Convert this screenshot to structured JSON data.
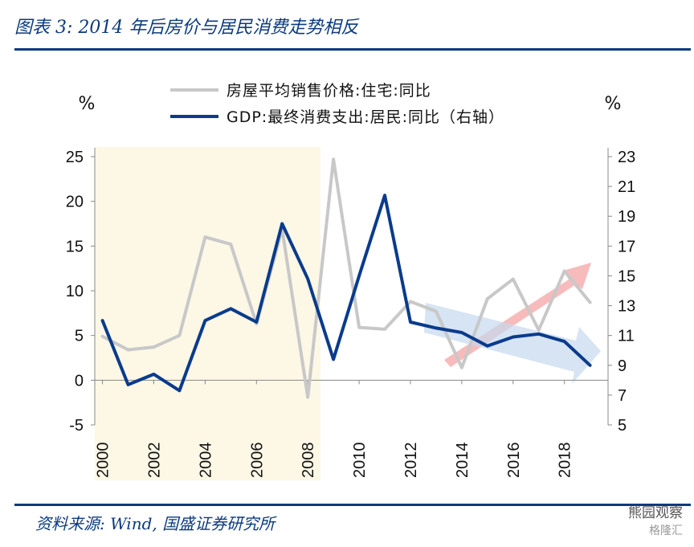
{
  "header": {
    "title": "图表 3:  2014 年后房价与居民消费走势相反"
  },
  "footer": {
    "source": "资料来源:  Wind,  国盛证券研究所",
    "watermark_main": "熊园观察",
    "watermark_sub": "格隆汇"
  },
  "colors": {
    "title_blue": "#0b3a7e",
    "house_series": "#c8c8c8",
    "gdp_series": "#0a3b8c",
    "shade": "#fdf7e6",
    "arrow_red": "#f4a4a4",
    "arrow_blue": "#c6d8ee"
  },
  "chart_data": {
    "type": "line",
    "left_unit": "%",
    "right_unit": "%",
    "y_left_ticks": [
      "25",
      "20",
      "15",
      "10",
      "5",
      "0",
      "-5"
    ],
    "y_right_ticks": [
      "23",
      "21",
      "19",
      "17",
      "15",
      "13",
      "11",
      "9",
      "7",
      "5"
    ],
    "x_ticks": [
      "2000",
      "2002",
      "2004",
      "2006",
      "2008",
      "2010",
      "2012",
      "2014",
      "2016",
      "2018"
    ],
    "ylim_left": [
      -5,
      25
    ],
    "ylim_right": [
      5,
      23
    ],
    "xlim": [
      1999.7,
      2019.7
    ],
    "shaded_range": [
      1999.7,
      2008.5
    ],
    "series": [
      {
        "name": "房屋平均销售价格:住宅:同比",
        "axis": "left",
        "x": [
          2000,
          2001,
          2002,
          2003,
          2004,
          2005,
          2006,
          2007,
          2008,
          2009,
          2010,
          2011,
          2012,
          2013,
          2014,
          2015,
          2016,
          2017,
          2018,
          2019
        ],
        "values": [
          4.9,
          3.4,
          3.7,
          5.0,
          16.0,
          15.2,
          6.3,
          16.9,
          -1.9,
          24.7,
          5.9,
          5.7,
          8.8,
          7.7,
          1.4,
          9.1,
          11.3,
          5.6,
          12.2,
          8.7
        ]
      },
      {
        "name": "GDP:最终消费支出:居民:同比（右轴）",
        "axis": "right",
        "x": [
          2000,
          2001,
          2002,
          2003,
          2004,
          2005,
          2006,
          2007,
          2008,
          2009,
          2010,
          2011,
          2012,
          2013,
          2014,
          2015,
          2016,
          2017,
          2018,
          2019
        ],
        "values": [
          12.0,
          7.7,
          8.4,
          7.3,
          12.0,
          12.8,
          11.9,
          18.5,
          14.8,
          9.4,
          15.0,
          20.4,
          11.9,
          11.5,
          11.2,
          10.3,
          10.9,
          11.1,
          10.6,
          9.0
        ]
      }
    ],
    "grid": false,
    "legend_position": "top-center"
  }
}
